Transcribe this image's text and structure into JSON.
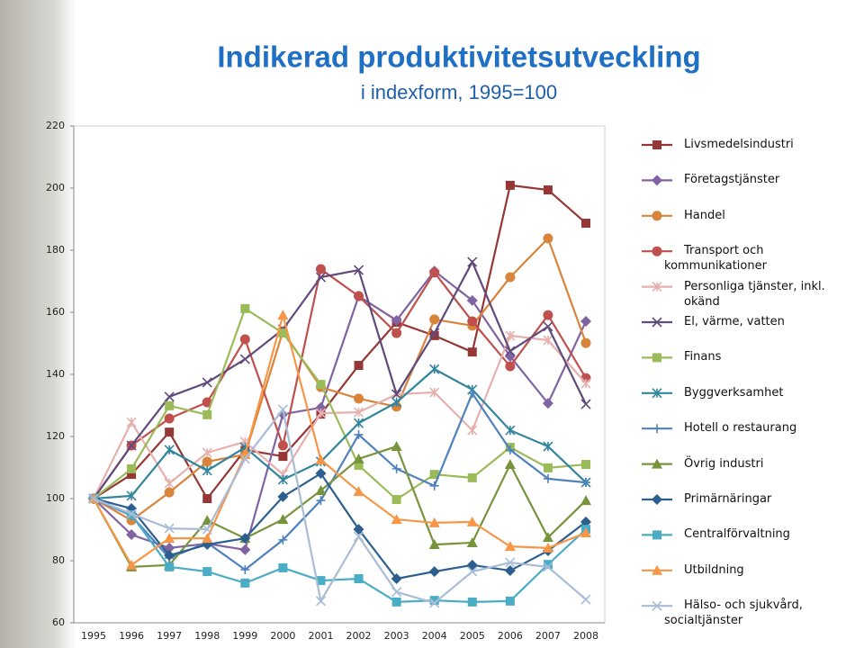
{
  "chart_data": {
    "type": "line",
    "title": "Indikerad produktivitetsutveckling",
    "subtitle": "i indexform, 1995=100",
    "categories": [
      "1995",
      "1996",
      "1997",
      "1998",
      "1999",
      "2000",
      "2001",
      "2002",
      "2003",
      "2004",
      "2005",
      "2006",
      "2007",
      "2008"
    ],
    "ylim": [
      60,
      220
    ],
    "yticks": [
      60,
      80,
      100,
      120,
      140,
      160,
      180,
      200,
      220
    ],
    "grid": false,
    "legend": "right",
    "series": [
      {
        "name": "Livsmedelsindustri",
        "color": "#953735",
        "marker": "square",
        "values": [
          100,
          107.8,
          121.4,
          100,
          115.7,
          113.6,
          127.2,
          142.9,
          156.8,
          152.5,
          147.2,
          200.9,
          199.4,
          188.7
        ]
      },
      {
        "name": "Företagstjänster",
        "color": "#8064a2",
        "marker": "diamond",
        "values": [
          100,
          88.4,
          84.1,
          85.5,
          83.5,
          127.2,
          129.3,
          165.2,
          157.4,
          173.3,
          163.8,
          145.8,
          130.7,
          157.1
        ]
      },
      {
        "name": "Handel",
        "color": "#d9843b",
        "marker": "circle",
        "values": [
          100,
          93,
          102,
          111.9,
          114.2,
          153.9,
          135.9,
          132.2,
          129.6,
          157.7,
          155.7,
          171.3,
          183.8,
          150.1
        ]
      },
      {
        "name": "Transport och\nkommunikationer",
        "color": "#c0504d",
        "marker": "circle",
        "values": [
          100,
          117.1,
          125.8,
          131,
          151.3,
          117.1,
          173.9,
          165.2,
          153.3,
          172.8,
          157.1,
          142.6,
          159.1,
          138.8
        ]
      },
      {
        "name": "Personliga tjänster, inkl. okänd",
        "color": "#e6b0ae",
        "marker": "star",
        "values": [
          100,
          124.6,
          104.9,
          114.8,
          118.3,
          107.8,
          127.5,
          127.8,
          133.6,
          134.2,
          122,
          152.5,
          151,
          137.1
        ]
      },
      {
        "name": "El, värme, vatten",
        "color": "#5f4a7b",
        "marker": "x",
        "values": [
          100,
          117.1,
          132.8,
          137.4,
          144.9,
          154.5,
          171.3,
          173.6,
          133.6,
          153.3,
          176.2,
          147.5,
          155.4,
          130.4
        ]
      },
      {
        "name": "Finans",
        "color": "#9bbb59",
        "marker": "square",
        "values": [
          100,
          109.6,
          129.9,
          127,
          161.2,
          153.3,
          136.8,
          110.7,
          99.7,
          107.8,
          106.7,
          116.5,
          109.9,
          111
        ]
      },
      {
        "name": "Byggverksamhet",
        "color": "#31859c",
        "marker": "star",
        "values": [
          100,
          100.9,
          115.7,
          109,
          116.5,
          106.1,
          111.9,
          124.3,
          131,
          141.7,
          135.1,
          122,
          116.8,
          105.2
        ]
      },
      {
        "name": "Hotell o restaurang",
        "color": "#4f81bd",
        "marker": "plus",
        "values": [
          100,
          94.5,
          80.9,
          85.8,
          77.1,
          86.7,
          99.4,
          120.6,
          109.6,
          104.1,
          133.9,
          115.7,
          106.4,
          105.2
        ]
      },
      {
        "name": "Övrig industri",
        "color": "#77933c",
        "marker": "triangle",
        "values": [
          100,
          78,
          78.6,
          93,
          87.2,
          93.3,
          102.6,
          112.8,
          116.8,
          85.2,
          85.8,
          111,
          87.5,
          99.4
        ]
      },
      {
        "name": "Primärnäringar",
        "color": "#2c5f8e",
        "marker": "diamond",
        "values": [
          100,
          96.8,
          81.7,
          85.2,
          87.2,
          100.6,
          108.1,
          90.1,
          74.2,
          76.5,
          78.6,
          76.8,
          83.2,
          92.5
        ]
      },
      {
        "name": "Centralförvaltning",
        "color": "#4bacc6",
        "marker": "square",
        "values": [
          100,
          94.8,
          78,
          76.5,
          72.8,
          77.7,
          73.6,
          74.2,
          66.7,
          67.2,
          66.7,
          67,
          78.8,
          90.1
        ]
      },
      {
        "name": "Utbildning",
        "color": "#f79646",
        "marker": "triangle",
        "values": [
          100,
          78.6,
          87.2,
          87.2,
          114.2,
          159.1,
          112.5,
          102.3,
          93.3,
          92.2,
          92.5,
          84.6,
          84.1,
          89
        ]
      },
      {
        "name": "Hälso- och sjukvård,\nsocialtjänster",
        "color": "#a9bcd6",
        "marker": "x",
        "values": [
          100,
          95.1,
          90.4,
          90.1,
          112.8,
          128.7,
          67,
          87.8,
          69.9,
          66.4,
          76.5,
          79.4,
          78,
          67.5
        ]
      }
    ]
  }
}
